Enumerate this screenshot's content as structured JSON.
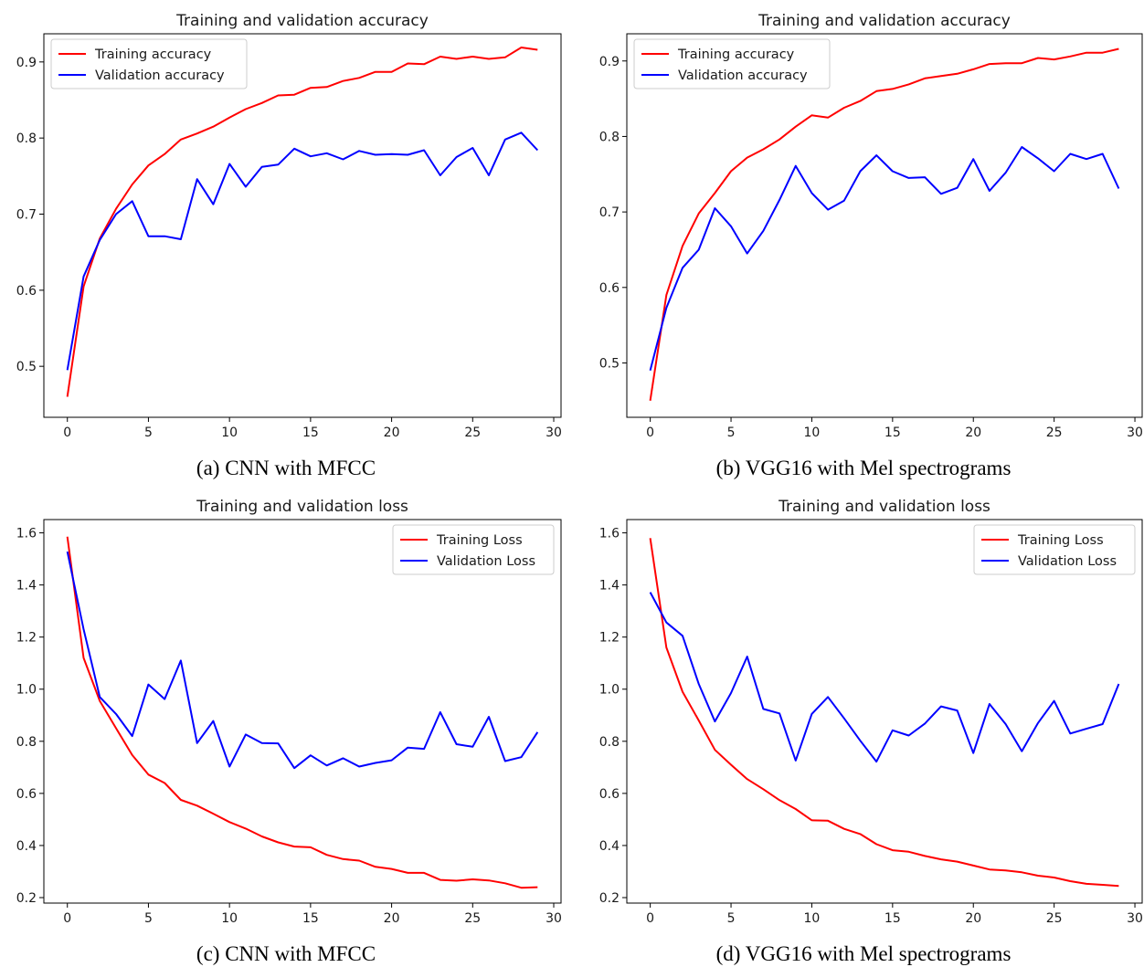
{
  "captions": [
    "(a) CNN with MFCC",
    "(b) VGG16 with Mel spectrograms",
    "(c) CNN with MFCC",
    "(d) VGG16 with Mel spectrograms"
  ],
  "colors": {
    "training": "#ff0000",
    "validation": "#0000ff"
  },
  "chart_data": [
    {
      "type": "line",
      "title": "Training and validation accuracy",
      "xlabel": "",
      "ylabel": "",
      "xlim": [
        -1.45,
        30.45
      ],
      "ylim": [
        0.433,
        0.937
      ],
      "xticks": [
        0,
        5,
        10,
        15,
        20,
        25,
        30
      ],
      "yticks": [
        0.5,
        0.6,
        0.7,
        0.8,
        0.9
      ],
      "legend": "top-left",
      "grid": false,
      "x": [
        0,
        1,
        2,
        3,
        4,
        5,
        6,
        7,
        8,
        9,
        10,
        11,
        12,
        13,
        14,
        15,
        16,
        17,
        18,
        19,
        20,
        21,
        22,
        23,
        24,
        25,
        26,
        27,
        28,
        29
      ],
      "series": [
        {
          "name": "Training accuracy",
          "color": "#ff0000",
          "values": [
            0.46,
            0.605,
            0.668,
            0.707,
            0.739,
            0.764,
            0.779,
            0.798,
            0.806,
            0.815,
            0.827,
            0.838,
            0.846,
            0.856,
            0.857,
            0.866,
            0.867,
            0.875,
            0.879,
            0.887,
            0.887,
            0.898,
            0.897,
            0.907,
            0.904,
            0.907,
            0.904,
            0.906,
            0.919,
            0.916
          ]
        },
        {
          "name": "Validation accuracy",
          "color": "#0000ff",
          "values": [
            0.495,
            0.618,
            0.666,
            0.7,
            0.717,
            0.671,
            0.671,
            0.667,
            0.746,
            0.713,
            0.766,
            0.736,
            0.762,
            0.765,
            0.786,
            0.776,
            0.78,
            0.772,
            0.783,
            0.778,
            0.779,
            0.778,
            0.784,
            0.751,
            0.775,
            0.787,
            0.751,
            0.798,
            0.807,
            0.784
          ]
        }
      ]
    },
    {
      "type": "line",
      "title": "Training and validation accuracy",
      "xlabel": "",
      "ylabel": "",
      "xlim": [
        -1.45,
        30.45
      ],
      "ylim": [
        0.428,
        0.936
      ],
      "xticks": [
        0,
        5,
        10,
        15,
        20,
        25,
        30
      ],
      "yticks": [
        0.5,
        0.6,
        0.7,
        0.8,
        0.9
      ],
      "legend": "top-left",
      "grid": false,
      "x": [
        0,
        1,
        2,
        3,
        4,
        5,
        6,
        7,
        8,
        9,
        10,
        11,
        12,
        13,
        14,
        15,
        16,
        17,
        18,
        19,
        20,
        21,
        22,
        23,
        24,
        25,
        26,
        27,
        28,
        29
      ],
      "series": [
        {
          "name": "Training accuracy",
          "color": "#ff0000",
          "values": [
            0.45,
            0.59,
            0.655,
            0.698,
            0.725,
            0.754,
            0.772,
            0.783,
            0.796,
            0.813,
            0.828,
            0.825,
            0.838,
            0.847,
            0.86,
            0.863,
            0.869,
            0.877,
            0.88,
            0.883,
            0.889,
            0.896,
            0.897,
            0.897,
            0.904,
            0.902,
            0.906,
            0.911,
            0.911,
            0.916
          ]
        },
        {
          "name": "Validation accuracy",
          "color": "#0000ff",
          "values": [
            0.49,
            0.573,
            0.626,
            0.65,
            0.705,
            0.681,
            0.645,
            0.675,
            0.716,
            0.761,
            0.725,
            0.703,
            0.715,
            0.754,
            0.775,
            0.754,
            0.745,
            0.746,
            0.724,
            0.732,
            0.77,
            0.728,
            0.752,
            0.786,
            0.771,
            0.754,
            0.777,
            0.77,
            0.777,
            0.731
          ]
        }
      ]
    },
    {
      "type": "line",
      "title": "Training and validation loss",
      "xlabel": "",
      "ylabel": "",
      "xlim": [
        -1.45,
        30.45
      ],
      "ylim": [
        0.179,
        1.651
      ],
      "xticks": [
        0,
        5,
        10,
        15,
        20,
        25,
        30
      ],
      "yticks": [
        0.2,
        0.4,
        0.6,
        0.8,
        1.0,
        1.2,
        1.4,
        1.6
      ],
      "legend": "top-right",
      "grid": false,
      "x": [
        0,
        1,
        2,
        3,
        4,
        5,
        6,
        7,
        8,
        9,
        10,
        11,
        12,
        13,
        14,
        15,
        16,
        17,
        18,
        19,
        20,
        21,
        22,
        23,
        24,
        25,
        26,
        27,
        28,
        29
      ],
      "series": [
        {
          "name": "Training Loss",
          "color": "#ff0000",
          "values": [
            1.585,
            1.12,
            0.955,
            0.85,
            0.747,
            0.672,
            0.64,
            0.575,
            0.553,
            0.522,
            0.49,
            0.465,
            0.435,
            0.412,
            0.396,
            0.393,
            0.364,
            0.348,
            0.342,
            0.318,
            0.31,
            0.295,
            0.295,
            0.268,
            0.265,
            0.27,
            0.266,
            0.255,
            0.238,
            0.24
          ]
        },
        {
          "name": "Validation Loss",
          "color": "#0000ff",
          "values": [
            1.528,
            1.23,
            0.97,
            0.905,
            0.82,
            1.018,
            0.962,
            1.11,
            0.793,
            0.878,
            0.703,
            0.826,
            0.793,
            0.792,
            0.697,
            0.746,
            0.707,
            0.735,
            0.703,
            0.717,
            0.727,
            0.776,
            0.771,
            0.912,
            0.789,
            0.779,
            0.894,
            0.724,
            0.739,
            0.835
          ]
        }
      ]
    },
    {
      "type": "line",
      "title": "Training and validation loss",
      "xlabel": "",
      "ylabel": "",
      "xlim": [
        -1.45,
        30.45
      ],
      "ylim": [
        0.179,
        1.651
      ],
      "xticks": [
        0,
        5,
        10,
        15,
        20,
        25,
        30
      ],
      "yticks": [
        0.2,
        0.4,
        0.6,
        0.8,
        1.0,
        1.2,
        1.4,
        1.6
      ],
      "legend": "top-right",
      "grid": false,
      "x": [
        0,
        1,
        2,
        3,
        4,
        5,
        6,
        7,
        8,
        9,
        10,
        11,
        12,
        13,
        14,
        15,
        16,
        17,
        18,
        19,
        20,
        21,
        22,
        23,
        24,
        25,
        26,
        27,
        28,
        29
      ],
      "series": [
        {
          "name": "Training Loss",
          "color": "#ff0000",
          "values": [
            1.58,
            1.16,
            0.99,
            0.88,
            0.767,
            0.71,
            0.655,
            0.616,
            0.574,
            0.54,
            0.497,
            0.495,
            0.464,
            0.444,
            0.405,
            0.382,
            0.376,
            0.36,
            0.347,
            0.338,
            0.323,
            0.308,
            0.304,
            0.297,
            0.284,
            0.277,
            0.263,
            0.253,
            0.249,
            0.245
          ]
        },
        {
          "name": "Validation Loss",
          "color": "#0000ff",
          "values": [
            1.372,
            1.256,
            1.205,
            1.02,
            0.876,
            0.985,
            1.125,
            0.924,
            0.907,
            0.726,
            0.905,
            0.97,
            0.888,
            0.802,
            0.722,
            0.842,
            0.822,
            0.868,
            0.934,
            0.918,
            0.755,
            0.943,
            0.866,
            0.762,
            0.87,
            0.955,
            0.83,
            0.848,
            0.866,
            1.02
          ]
        }
      ]
    }
  ]
}
